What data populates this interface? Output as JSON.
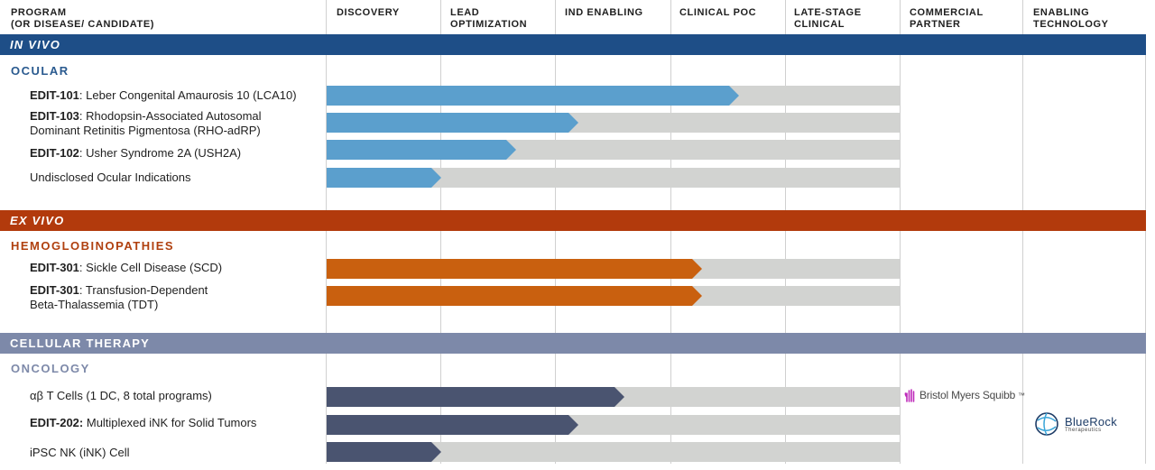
{
  "header": {
    "program_label": "PROGRAM",
    "program_sub": "(OR DISEASE/ CANDIDATE)",
    "phases": [
      {
        "line1": "DISCOVERY",
        "line2": ""
      },
      {
        "line1": "LEAD",
        "line2": "OPTIMIZATION"
      },
      {
        "line1": "IND ENABLING",
        "line2": ""
      },
      {
        "line1": "CLINICAL POC",
        "line2": ""
      },
      {
        "line1": "LATE-STAGE",
        "line2": "CLINICAL"
      },
      {
        "line1": "COMMERCIAL",
        "line2": "PARTNER"
      },
      {
        "line1": "ENABLING",
        "line2": "TECHNOLOGY"
      }
    ]
  },
  "sections": [
    {
      "band_label": "IN VIVO",
      "band_color": "#1e4e87",
      "sub_label": "OCULAR",
      "sub_color": "#2a5a8f",
      "bar_color": "#5b9fcd",
      "programs": [
        {
          "bold": "EDIT-101",
          "rest": ": Leber Congenital Amaurosis 10 (LCA10)",
          "rest2": "",
          "progress": 0.72
        },
        {
          "bold": "EDIT-103",
          "rest": ": Rhodopsin-Associated Autosomal",
          "rest2": "Dominant Retinitis Pigmentosa (RHO-adRP)",
          "progress": 0.44
        },
        {
          "bold": "EDIT-102",
          "rest": ": Usher Syndrome 2A (USH2A)",
          "rest2": "",
          "progress": 0.33
        },
        {
          "bold": "",
          "rest": "Undisclosed Ocular Indications",
          "rest2": "",
          "progress": 0.2
        }
      ]
    },
    {
      "band_label": "EX VIVO",
      "band_color": "#b23a0c",
      "sub_label": "HEMOGLOBINOPATHIES",
      "sub_color": "#b0400f",
      "bar_color": "#c9600f",
      "programs": [
        {
          "bold": "EDIT-301",
          "rest": ": Sickle Cell Disease (SCD)",
          "rest2": "",
          "progress": 0.655
        },
        {
          "bold": "EDIT-301",
          "rest": ": Transfusion-Dependent",
          "rest2": "Beta-Thalassemia (TDT)",
          "progress": 0.655
        }
      ]
    },
    {
      "band_label": "CELLULAR THERAPY",
      "band_color": "#7d89a9",
      "sub_label": "ONCOLOGY",
      "sub_color": "#7d89a9",
      "bar_color": "#4a5470",
      "programs": [
        {
          "bold": "",
          "rest": "αβ T Cells (1 DC, 8 total programs)",
          "rest2": "",
          "progress": 0.52
        },
        {
          "bold": "EDIT-202:",
          "rest": " Multiplexed iNK for Solid Tumors",
          "rest2": "",
          "progress": 0.44
        },
        {
          "bold": "",
          "rest": "iPSC NK (iNK) Cell",
          "rest2": "",
          "progress": 0.2
        }
      ]
    }
  ],
  "partners": {
    "commercial": "Bristol Myers Squibb",
    "commercial_tm": "™",
    "enabling_name": "BlueRock",
    "enabling_sub": "Therapeutics"
  }
}
